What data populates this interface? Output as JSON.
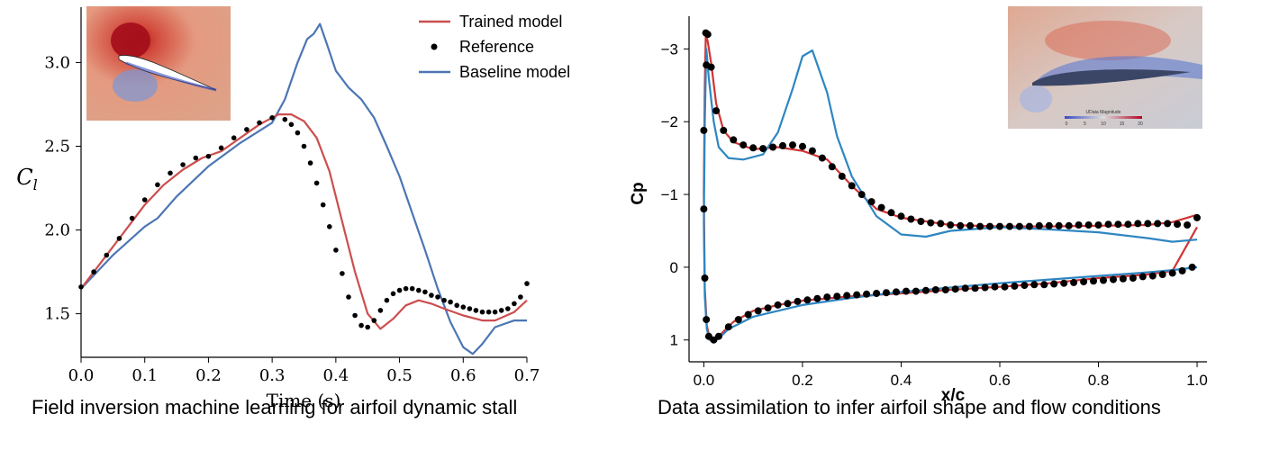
{
  "colors": {
    "trained": "#cc4e4e",
    "reference": "#000000",
    "baseline": "#4c76b3",
    "baseline_right": "#2e86c1",
    "trained_right": "#d03434"
  },
  "legend": {
    "trained": "Trained model",
    "reference": "Reference",
    "baseline": "Baseline model"
  },
  "captions": {
    "left": "Field inversion machine learning for airfoil dynamic stall",
    "right": "Data assimilation to infer airfoil shape and flow conditions"
  },
  "chart_data": [
    {
      "type": "line",
      "title": "",
      "xlabel": "Time (s)",
      "ylabel": "C",
      "ylabel_sub": "l",
      "xlim": [
        0.0,
        0.7
      ],
      "ylim": [
        1.24,
        3.33
      ],
      "xticks": [
        "0.0",
        "0.1",
        "0.2",
        "0.3",
        "0.4",
        "0.5",
        "0.6",
        "0.7"
      ],
      "xtick_values": [
        0.0,
        0.1,
        0.2,
        0.3,
        0.4,
        0.5,
        0.6,
        0.7
      ],
      "yticks": [
        "1.5",
        "2.0",
        "2.5",
        "3.0"
      ],
      "ytick_values": [
        1.5,
        2.0,
        2.5,
        3.0
      ],
      "inset": "airfoil flow field contour (velocity magnitude)",
      "series": [
        {
          "name": "Trained model",
          "style": "line",
          "x": [
            0.0,
            0.05,
            0.1,
            0.13,
            0.16,
            0.19,
            0.22,
            0.25,
            0.28,
            0.31,
            0.33,
            0.35,
            0.37,
            0.39,
            0.41,
            0.43,
            0.45,
            0.47,
            0.49,
            0.51,
            0.53,
            0.55,
            0.57,
            0.6,
            0.63,
            0.65,
            0.68,
            0.7
          ],
          "y": [
            1.65,
            1.9,
            2.15,
            2.27,
            2.36,
            2.43,
            2.47,
            2.55,
            2.63,
            2.69,
            2.69,
            2.65,
            2.55,
            2.35,
            2.05,
            1.75,
            1.5,
            1.41,
            1.47,
            1.55,
            1.58,
            1.56,
            1.53,
            1.49,
            1.46,
            1.46,
            1.51,
            1.58
          ]
        },
        {
          "name": "Reference",
          "style": "dots",
          "x": [
            0.0,
            0.02,
            0.04,
            0.06,
            0.08,
            0.1,
            0.12,
            0.14,
            0.16,
            0.18,
            0.2,
            0.22,
            0.24,
            0.26,
            0.28,
            0.3,
            0.32,
            0.33,
            0.34,
            0.35,
            0.36,
            0.37,
            0.38,
            0.39,
            0.4,
            0.41,
            0.42,
            0.43,
            0.44,
            0.45,
            0.46,
            0.47,
            0.48,
            0.49,
            0.5,
            0.51,
            0.52,
            0.53,
            0.54,
            0.55,
            0.56,
            0.57,
            0.58,
            0.59,
            0.6,
            0.61,
            0.62,
            0.63,
            0.64,
            0.65,
            0.66,
            0.67,
            0.68,
            0.69,
            0.7
          ],
          "y": [
            1.66,
            1.75,
            1.85,
            1.95,
            2.07,
            2.18,
            2.27,
            2.34,
            2.39,
            2.43,
            2.44,
            2.49,
            2.55,
            2.6,
            2.64,
            2.67,
            2.66,
            2.63,
            2.58,
            2.5,
            2.4,
            2.28,
            2.15,
            2.02,
            1.88,
            1.74,
            1.6,
            1.49,
            1.43,
            1.42,
            1.46,
            1.52,
            1.58,
            1.62,
            1.64,
            1.65,
            1.65,
            1.64,
            1.63,
            1.61,
            1.6,
            1.58,
            1.57,
            1.55,
            1.54,
            1.53,
            1.52,
            1.51,
            1.51,
            1.51,
            1.52,
            1.53,
            1.56,
            1.6,
            1.68
          ]
        },
        {
          "name": "Baseline model",
          "style": "line",
          "x": [
            0.0,
            0.05,
            0.1,
            0.12,
            0.15,
            0.2,
            0.25,
            0.3,
            0.32,
            0.34,
            0.355,
            0.365,
            0.375,
            0.385,
            0.4,
            0.42,
            0.44,
            0.46,
            0.48,
            0.5,
            0.52,
            0.54,
            0.56,
            0.58,
            0.6,
            0.615,
            0.63,
            0.65,
            0.68,
            0.7
          ],
          "y": [
            1.65,
            1.85,
            2.02,
            2.07,
            2.2,
            2.38,
            2.52,
            2.64,
            2.78,
            3.0,
            3.14,
            3.17,
            3.23,
            3.12,
            2.95,
            2.85,
            2.78,
            2.67,
            2.5,
            2.32,
            2.1,
            1.88,
            1.65,
            1.45,
            1.3,
            1.26,
            1.32,
            1.42,
            1.46,
            1.46
          ]
        }
      ]
    },
    {
      "type": "line",
      "title": "",
      "xlabel": "x/c",
      "ylabel": "Cp",
      "xlim": [
        -0.03,
        1.02
      ],
      "ylim": [
        1.3,
        -3.45
      ],
      "y_inverted": true,
      "xticks": [
        "0.0",
        "0.2",
        "0.4",
        "0.6",
        "0.8",
        "1.0"
      ],
      "xtick_values": [
        0.0,
        0.2,
        0.4,
        0.6,
        0.8,
        1.0
      ],
      "yticks": [
        "−3",
        "−2",
        "−1",
        "0",
        "1"
      ],
      "ytick_values": [
        -3,
        -2,
        -1,
        0,
        1
      ],
      "inset": "airfoil flow field contour with UData Magnitude colorbar",
      "inset_colorbar_label": "UData Magnitude",
      "inset_colorbar_ticks": [
        "0",
        "5",
        "10",
        "15",
        "20"
      ],
      "series": [
        {
          "name": "Trained model",
          "style": "line",
          "x": [
            1.0,
            0.95,
            0.9,
            0.8,
            0.7,
            0.6,
            0.5,
            0.4,
            0.35,
            0.3,
            0.25,
            0.2,
            0.15,
            0.1,
            0.06,
            0.04,
            0.025,
            0.015,
            0.008,
            0.004,
            0.002,
            0.0,
            0.002,
            0.006,
            0.012,
            0.02,
            0.03,
            0.06,
            0.1,
            0.15,
            0.2,
            0.3,
            0.4,
            0.5,
            0.6,
            0.7,
            0.8,
            0.9,
            0.95,
            1.0
          ],
          "y": [
            -0.72,
            -0.62,
            -0.58,
            -0.57,
            -0.56,
            -0.56,
            -0.58,
            -0.68,
            -0.8,
            -1.12,
            -1.48,
            -1.6,
            -1.65,
            -1.62,
            -1.72,
            -1.88,
            -2.25,
            -2.8,
            -3.1,
            -3.2,
            -2.5,
            -1.0,
            0.3,
            0.8,
            0.98,
            1.0,
            0.95,
            0.75,
            0.6,
            0.52,
            0.46,
            0.4,
            0.36,
            0.31,
            0.27,
            0.22,
            0.15,
            0.1,
            0.05,
            -0.55
          ]
        },
        {
          "name": "Reference",
          "style": "dots",
          "x": [
            0.004,
            0.008,
            0.005,
            0.015,
            0.025,
            0.04,
            0.06,
            0.08,
            0.1,
            0.12,
            0.14,
            0.16,
            0.18,
            0.2,
            0.22,
            0.24,
            0.26,
            0.28,
            0.3,
            0.32,
            0.34,
            0.36,
            0.38,
            0.4,
            0.42,
            0.44,
            0.46,
            0.48,
            0.5,
            0.52,
            0.54,
            0.56,
            0.58,
            0.6,
            0.62,
            0.64,
            0.66,
            0.68,
            0.7,
            0.72,
            0.74,
            0.76,
            0.78,
            0.8,
            0.82,
            0.84,
            0.86,
            0.88,
            0.9,
            0.92,
            0.94,
            0.96,
            0.98,
            1.0,
            0.0,
            0.0,
            0.002,
            0.005,
            0.01,
            0.02,
            0.03,
            0.05,
            0.07,
            0.09,
            0.11,
            0.13,
            0.15,
            0.17,
            0.19,
            0.21,
            0.23,
            0.25,
            0.27,
            0.29,
            0.31,
            0.33,
            0.35,
            0.37,
            0.39,
            0.41,
            0.43,
            0.45,
            0.47,
            0.49,
            0.51,
            0.53,
            0.55,
            0.57,
            0.59,
            0.61,
            0.63,
            0.65,
            0.67,
            0.69,
            0.71,
            0.73,
            0.75,
            0.77,
            0.79,
            0.81,
            0.83,
            0.85,
            0.87,
            0.89,
            0.91,
            0.93,
            0.95,
            0.97,
            0.99
          ],
          "y": [
            -3.22,
            -3.2,
            -2.78,
            -2.75,
            -2.15,
            -1.88,
            -1.75,
            -1.68,
            -1.64,
            -1.63,
            -1.65,
            -1.67,
            -1.68,
            -1.66,
            -1.6,
            -1.5,
            -1.38,
            -1.25,
            -1.12,
            -1.0,
            -0.9,
            -0.82,
            -0.75,
            -0.7,
            -0.66,
            -0.63,
            -0.61,
            -0.6,
            -0.58,
            -0.57,
            -0.57,
            -0.56,
            -0.56,
            -0.56,
            -0.56,
            -0.56,
            -0.56,
            -0.57,
            -0.57,
            -0.57,
            -0.57,
            -0.58,
            -0.58,
            -0.58,
            -0.59,
            -0.59,
            -0.59,
            -0.6,
            -0.6,
            -0.6,
            -0.6,
            -0.59,
            -0.58,
            -0.68,
            -1.88,
            -0.8,
            0.15,
            0.72,
            0.95,
            1.0,
            0.95,
            0.82,
            0.72,
            0.65,
            0.6,
            0.56,
            0.52,
            0.5,
            0.47,
            0.45,
            0.43,
            0.41,
            0.4,
            0.39,
            0.38,
            0.37,
            0.36,
            0.35,
            0.34,
            0.33,
            0.33,
            0.32,
            0.31,
            0.31,
            0.3,
            0.29,
            0.29,
            0.28,
            0.27,
            0.27,
            0.26,
            0.25,
            0.24,
            0.24,
            0.23,
            0.22,
            0.21,
            0.2,
            0.19,
            0.18,
            0.17,
            0.16,
            0.15,
            0.13,
            0.12,
            0.1,
            0.08,
            0.05,
            0.0
          ]
        },
        {
          "name": "Baseline model",
          "style": "line",
          "x": [
            1.0,
            0.95,
            0.9,
            0.8,
            0.7,
            0.6,
            0.5,
            0.45,
            0.4,
            0.35,
            0.3,
            0.27,
            0.25,
            0.22,
            0.2,
            0.18,
            0.15,
            0.12,
            0.08,
            0.05,
            0.03,
            0.02,
            0.01,
            0.005,
            0.002,
            0.0,
            0.002,
            0.006,
            0.012,
            0.02,
            0.03,
            0.05,
            0.1,
            0.2,
            0.3,
            0.4,
            0.5,
            0.6,
            0.7,
            0.8,
            0.9,
            0.95,
            1.0
          ],
          "y": [
            -0.38,
            -0.35,
            -0.4,
            -0.48,
            -0.52,
            -0.55,
            -0.5,
            -0.42,
            -0.45,
            -0.7,
            -1.25,
            -1.8,
            -2.4,
            -2.98,
            -2.9,
            -2.45,
            -1.85,
            -1.55,
            -1.48,
            -1.5,
            -1.65,
            -2.0,
            -2.6,
            -3.0,
            -2.0,
            -0.6,
            0.4,
            0.85,
            1.0,
            1.02,
            0.98,
            0.85,
            0.68,
            0.52,
            0.42,
            0.34,
            0.28,
            0.22,
            0.17,
            0.12,
            0.07,
            0.04,
            0.0
          ]
        }
      ]
    }
  ]
}
